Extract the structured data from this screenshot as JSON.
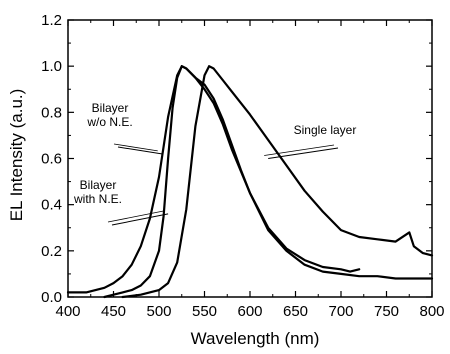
{
  "chart_data": {
    "type": "line",
    "xlabel": "Wavelength (nm)",
    "ylabel": "EL Intensity (a.u.)",
    "xlim": [
      400,
      800
    ],
    "ylim": [
      0.0,
      1.2
    ],
    "xticks": [
      "400",
      "450",
      "500",
      "550",
      "600",
      "650",
      "700",
      "750",
      "800"
    ],
    "yticks": [
      "0.0",
      "0.2",
      "0.4",
      "0.6",
      "0.8",
      "1.0",
      "1.2"
    ],
    "grid": false,
    "legend": "none",
    "series": [
      {
        "name": "Bilayer w/o N.E.",
        "x": [
          400,
          420,
          440,
          450,
          460,
          470,
          480,
          490,
          500,
          510,
          520,
          525,
          530,
          540,
          550,
          560,
          570,
          580,
          590,
          600,
          620,
          640,
          660,
          680,
          700,
          710,
          720
        ],
        "y": [
          0.02,
          0.02,
          0.04,
          0.06,
          0.09,
          0.14,
          0.22,
          0.34,
          0.52,
          0.78,
          0.96,
          1.0,
          0.99,
          0.95,
          0.92,
          0.86,
          0.77,
          0.66,
          0.55,
          0.45,
          0.3,
          0.21,
          0.16,
          0.13,
          0.12,
          0.11,
          0.12
        ]
      },
      {
        "name": "Bilayer with N.E.",
        "x": [
          440,
          450,
          460,
          470,
          480,
          490,
          500,
          505,
          510,
          515,
          520,
          525,
          530,
          540,
          550,
          560,
          570,
          580,
          600,
          620,
          640,
          660,
          680,
          700,
          720,
          740,
          760,
          780,
          800
        ],
        "y": [
          0.0,
          0.01,
          0.02,
          0.03,
          0.05,
          0.09,
          0.2,
          0.35,
          0.6,
          0.82,
          0.95,
          1.0,
          0.99,
          0.95,
          0.9,
          0.84,
          0.75,
          0.64,
          0.45,
          0.29,
          0.2,
          0.14,
          0.11,
          0.1,
          0.09,
          0.09,
          0.08,
          0.08,
          0.08
        ]
      },
      {
        "name": "Single layer",
        "x": [
          460,
          480,
          500,
          510,
          520,
          530,
          540,
          550,
          555,
          560,
          570,
          580,
          600,
          620,
          640,
          660,
          680,
          700,
          720,
          740,
          760,
          775,
          780,
          790,
          800
        ],
        "y": [
          0.0,
          0.01,
          0.03,
          0.06,
          0.15,
          0.38,
          0.74,
          0.96,
          1.0,
          0.99,
          0.94,
          0.89,
          0.79,
          0.68,
          0.57,
          0.46,
          0.37,
          0.29,
          0.26,
          0.25,
          0.24,
          0.28,
          0.22,
          0.19,
          0.18
        ]
      }
    ],
    "annotations": [
      {
        "lines": [
          "Bilayer",
          "w/o N.E."
        ],
        "points_to": [
          503,
          0.62
        ]
      },
      {
        "lines": [
          "Bilayer",
          "with N.E."
        ],
        "points_to": [
          510,
          0.36
        ]
      },
      {
        "lines": [
          "Single layer"
        ],
        "points_to": [
          620,
          0.6
        ]
      }
    ]
  }
}
